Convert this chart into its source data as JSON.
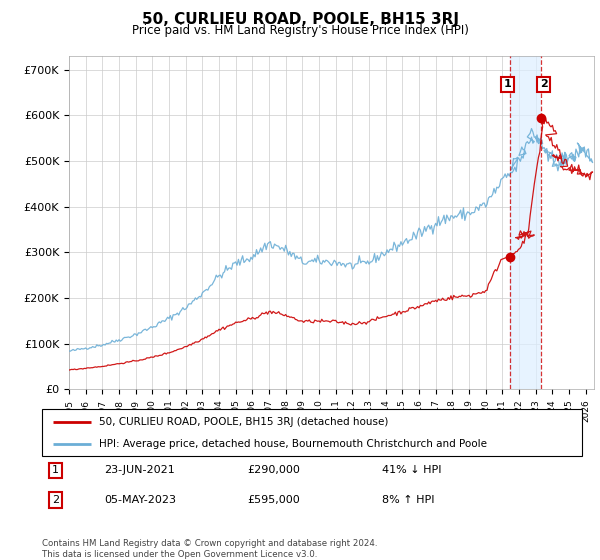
{
  "title": "50, CURLIEU ROAD, POOLE, BH15 3RJ",
  "subtitle": "Price paid vs. HM Land Registry's House Price Index (HPI)",
  "footer": "Contains HM Land Registry data © Crown copyright and database right 2024.\nThis data is licensed under the Open Government Licence v3.0.",
  "legend_line1": "50, CURLIEU ROAD, POOLE, BH15 3RJ (detached house)",
  "legend_line2": "HPI: Average price, detached house, Bournemouth Christchurch and Poole",
  "annotation1_date": "23-JUN-2021",
  "annotation1_price": "£290,000",
  "annotation1_hpi": "41% ↓ HPI",
  "annotation2_date": "05-MAY-2023",
  "annotation2_price": "£595,000",
  "annotation2_hpi": "8% ↑ HPI",
  "hpi_color": "#6baed6",
  "price_color": "#cc0000",
  "shading_color": "#ddeeff",
  "ylim": [
    0,
    730000
  ],
  "yticks": [
    0,
    100000,
    200000,
    300000,
    400000,
    500000,
    600000,
    700000
  ],
  "ytick_labels": [
    "£0",
    "£100K",
    "£200K",
    "£300K",
    "£400K",
    "£500K",
    "£600K",
    "£700K"
  ],
  "sale1_x": 2021.47,
  "sale1_y": 290000,
  "sale2_x": 2023.34,
  "sale2_y": 595000,
  "xlim_start": 1995.0,
  "xlim_end": 2026.5
}
